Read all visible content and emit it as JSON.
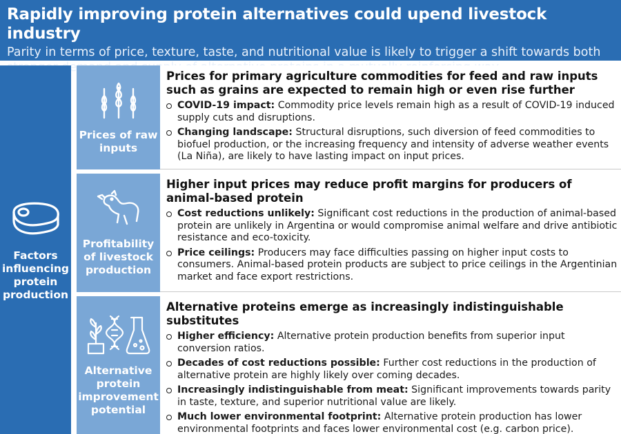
{
  "header": {
    "title": "Rapidly improving protein alternatives could upend livestock industry",
    "subtitle": "Parity in terms of price, texture, taste, and nutritional value is likely to trigger a shift towards both stronger demand and supply of alternative proteins in a mutually reinforcing way"
  },
  "left": {
    "icon": "meat-steak-icon",
    "label": "Factors influencing protein production"
  },
  "rows": [
    {
      "icon": "wheat-icon",
      "category": "Prices of raw inputs",
      "heading": "Prices for primary agriculture commodities for feed and raw inputs such as grains are expected to remain high or even rise further",
      "bullets": [
        {
          "bold": "COVID-19 impact:",
          "text": " Commodity price levels remain high as a result of COVID-19 induced supply cuts and disruptions."
        },
        {
          "bold": "Changing landscape:",
          "text": " Structural disruptions, such diversion of feed commodities to biofuel production, or the increasing frequency and intensity of adverse weather events (La Niña), are likely to have lasting impact on input prices."
        }
      ]
    },
    {
      "icon": "cow-icon",
      "category": "Profitability of livestock production",
      "heading": "Higher input prices may reduce profit margins for producers of animal-based protein",
      "bullets": [
        {
          "bold": "Cost reductions unlikely:",
          "text": " Significant cost reductions in the production of animal-based protein are unlikely in Argentina or would compromise animal welfare and drive antibiotic resistance and eco-toxicity."
        },
        {
          "bold": "Price ceilings:",
          "text": " Producers may face difficulties passing on higher input costs to consumers. Animal-based protein products are subject to price ceilings in the Argentinian market and face export restrictions."
        }
      ]
    },
    {
      "icon": "plant-dna-flask-icon",
      "category": "Alternative protein improvement potential",
      "heading": "Alternative proteins emerge as increasingly indistinguishable substitutes",
      "bullets": [
        {
          "bold": "Higher efficiency:",
          "text": " Alternative protein production benefits from superior input conversion ratios."
        },
        {
          "bold": "Decades of cost reductions possible:",
          "text": " Further cost reductions in the production of alternative protein are highly likely over coming decades."
        },
        {
          "bold": "Increasingly indistinguishable from meat:",
          "text": " Significant improvements towards parity in taste, texture, and superior nutritional value are likely."
        },
        {
          "bold": "Much lower environmental footprint:",
          "text": " Alternative protein production has lower environmental footprints and faces lower environmental cost (e.g. carbon price)."
        }
      ]
    }
  ],
  "colors": {
    "dark_blue": "#2a6db3",
    "light_blue": "#7aa7d6"
  }
}
